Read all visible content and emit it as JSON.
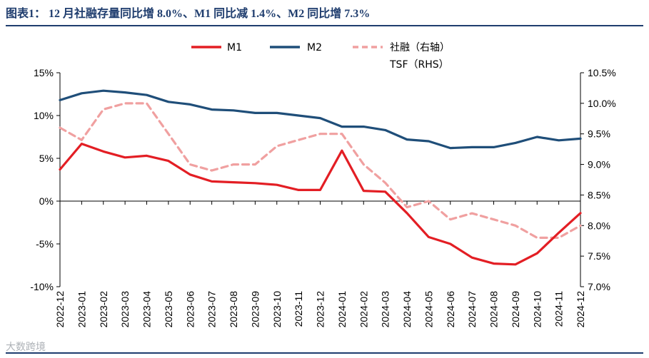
{
  "page": {
    "title": "图表1：  12 月社融存量同比增 8.0%、M1 同比减 1.4%、M2 同比增 7.3%",
    "watermark": "大数跨境"
  },
  "chart_data": {
    "type": "line",
    "title": "12 月社融存量同比增 8.0%、M1 同比减 1.4%、M2 同比增 7.3%",
    "categories": [
      "2022-12",
      "2023-01",
      "2023-02",
      "2023-03",
      "2023-04",
      "2023-05",
      "2023-06",
      "2023-07",
      "2023-08",
      "2023-09",
      "2023-10",
      "2023-11",
      "2023-12",
      "2024-01",
      "2024-02",
      "2024-03",
      "2024-04",
      "2024-05",
      "2024-06",
      "2024-07",
      "2024-08",
      "2024-09",
      "2024-10",
      "2024-11",
      "2024-12"
    ],
    "y_left": {
      "min": -10,
      "max": 15,
      "ticks": [
        -10,
        -5,
        0,
        5,
        10,
        15
      ],
      "tick_labels": [
        "-10%",
        "-5%",
        "0%",
        "5%",
        "10%",
        "15%"
      ]
    },
    "y_right": {
      "min": 7.0,
      "max": 10.5,
      "ticks": [
        7.0,
        7.5,
        8.0,
        8.5,
        9.0,
        9.5,
        10.0,
        10.5
      ],
      "tick_labels": [
        "7.0%",
        "7.5%",
        "8.0%",
        "8.5%",
        "9.0%",
        "9.5%",
        "10.0%",
        "10.5%"
      ]
    },
    "legend_position": "top-center",
    "series": [
      {
        "name": "M1",
        "legend_label": "M1",
        "axis": "left",
        "color": "#e31e24",
        "style": "solid",
        "values": [
          3.7,
          6.7,
          5.8,
          5.1,
          5.3,
          4.7,
          3.1,
          2.3,
          2.2,
          2.1,
          1.9,
          1.3,
          1.3,
          5.9,
          1.2,
          1.1,
          -1.4,
          -4.2,
          -5.0,
          -6.6,
          -7.3,
          -7.4,
          -6.1,
          -3.7,
          -1.4
        ]
      },
      {
        "name": "M2",
        "legend_label": "M2",
        "axis": "left",
        "color": "#1f4e79",
        "style": "solid",
        "values": [
          11.8,
          12.6,
          12.9,
          12.7,
          12.4,
          11.6,
          11.3,
          10.7,
          10.6,
          10.3,
          10.3,
          10.0,
          9.7,
          8.7,
          8.7,
          8.3,
          7.2,
          7.0,
          6.2,
          6.3,
          6.3,
          6.8,
          7.5,
          7.1,
          7.3
        ]
      },
      {
        "name": "社融（右轴）TSF（RHS）",
        "legend_label": "社融（右轴）",
        "legend_label_2": "TSF（RHS）",
        "axis": "right",
        "color": "#f0a0a0",
        "style": "dashed",
        "values": [
          9.6,
          9.4,
          9.9,
          10.0,
          10.0,
          9.5,
          9.0,
          8.9,
          9.0,
          9.0,
          9.3,
          9.4,
          9.5,
          9.5,
          9.0,
          8.7,
          8.3,
          8.4,
          8.1,
          8.2,
          8.1,
          8.0,
          7.8,
          7.8,
          8.0
        ]
      }
    ]
  }
}
